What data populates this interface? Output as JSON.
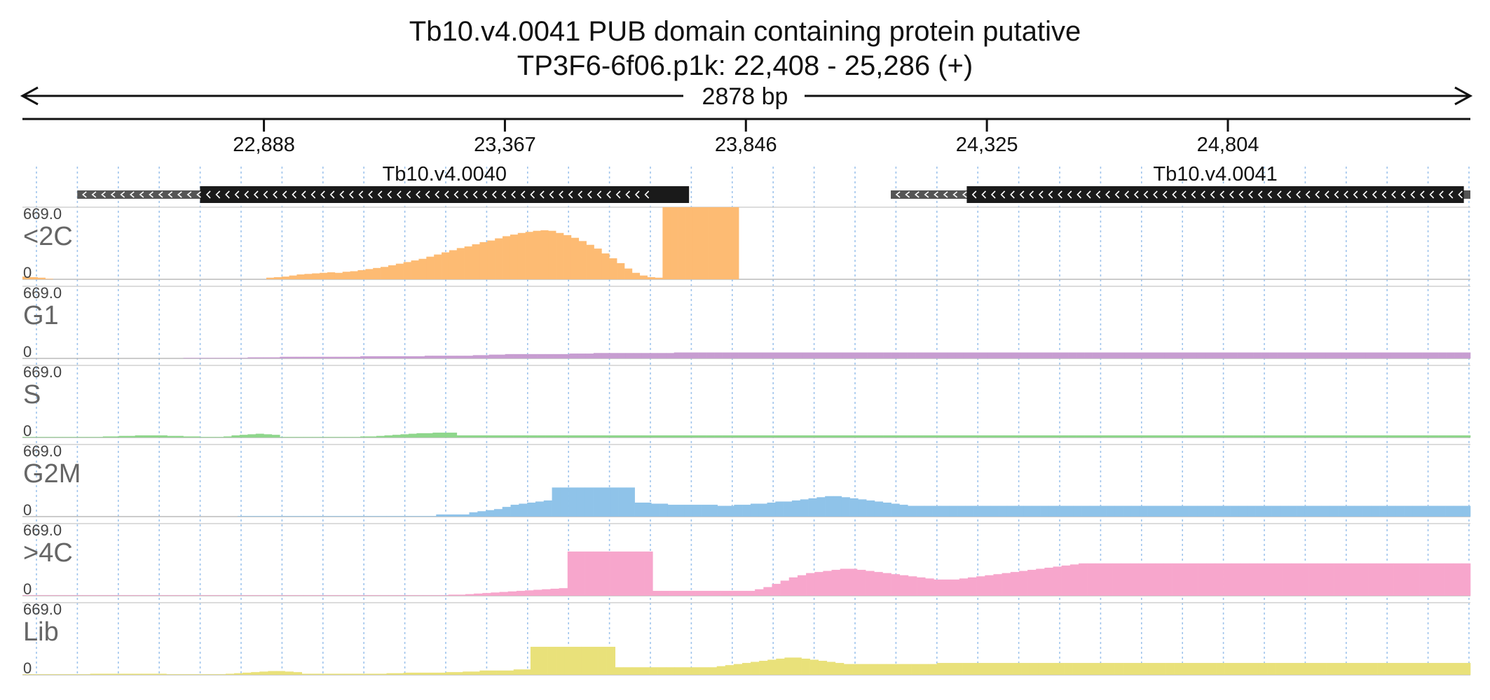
{
  "title": {
    "line1": "Tb10.v4.0041  PUB domain containing protein  putative",
    "line2": "TP3F6-6f06.p1k: 22,408 - 25,286 (+)"
  },
  "ruler": {
    "span_label": "2878 bp",
    "range": [
      22408,
      25286
    ],
    "ticks": [
      {
        "pos": 22888,
        "label": "22,888"
      },
      {
        "pos": 23367,
        "label": "23,367"
      },
      {
        "pos": 23846,
        "label": "23,846"
      },
      {
        "pos": 24325,
        "label": "24,325"
      },
      {
        "pos": 24804,
        "label": "24,804"
      }
    ]
  },
  "genes": [
    {
      "name": "Tb10.v4.0040",
      "utr": [
        22517,
        23672
      ],
      "cds": [
        22761,
        23733
      ],
      "strand": "-"
    },
    {
      "name": "Tb10.v4.0041",
      "utr": [
        24134,
        25286
      ],
      "cds": [
        24285,
        25273
      ],
      "strand": "-"
    }
  ],
  "colors": {
    "<2C": "#fdbb73",
    "G1": "#c79dd1",
    "S": "#8fd68c",
    "G2M": "#8fc3e9",
    ">4C": "#f7a6cc",
    "Lib": "#e9e17a",
    "gene_cds": "#1a1a1a",
    "gene_utr": "#555555",
    "grid": "#9fc4ec"
  },
  "chart_data": {
    "type": "area",
    "x_range": [
      22408,
      25286
    ],
    "bin_bp": 16.83,
    "y_range": [
      0,
      669.0
    ],
    "ymax_label": "669.0",
    "ymin_label": "0",
    "tracks": [
      {
        "name": "<2C",
        "values": [
          25,
          20,
          15,
          5,
          0,
          0,
          0,
          0,
          0,
          0,
          0,
          0,
          0,
          0,
          0,
          0,
          0,
          0,
          0,
          0,
          0,
          0,
          0,
          0,
          0,
          0,
          0,
          0,
          0,
          0,
          0,
          0,
          15,
          20,
          25,
          35,
          45,
          50,
          55,
          60,
          65,
          60,
          70,
          75,
          85,
          95,
          105,
          115,
          130,
          145,
          160,
          175,
          190,
          210,
          230,
          250,
          270,
          290,
          305,
          325,
          345,
          360,
          380,
          400,
          415,
          430,
          440,
          450,
          455,
          450,
          430,
          410,
          385,
          355,
          320,
          285,
          240,
          195,
          150,
          100,
          60,
          35,
          20,
          15,
          669,
          669,
          669,
          669,
          669,
          669,
          669,
          669,
          669,
          669,
          0,
          0,
          0,
          0,
          0,
          0,
          0,
          0,
          0,
          0,
          0,
          0,
          0,
          0,
          0,
          0,
          0,
          0,
          0,
          0,
          0,
          0,
          0,
          0,
          0,
          0,
          0,
          0,
          0,
          0,
          0,
          0,
          0,
          0,
          0,
          0,
          0,
          0,
          0,
          0,
          0,
          0,
          0,
          0,
          0,
          0,
          0,
          0,
          0,
          0,
          0,
          0,
          0,
          0,
          0,
          0,
          0,
          0,
          0,
          0,
          0,
          0,
          0,
          0,
          0,
          0,
          0,
          0,
          0,
          0,
          0,
          0,
          0,
          0,
          0,
          0,
          0,
          0,
          0,
          0,
          0,
          0,
          0,
          0,
          0,
          0,
          0,
          0,
          0,
          0,
          0,
          0,
          0,
          0,
          0,
          0
        ]
      },
      {
        "name": "G1",
        "values": [
          0,
          0,
          0,
          0,
          0,
          0,
          0,
          0,
          0,
          0,
          0,
          0,
          0,
          0,
          0,
          0,
          0,
          0,
          0,
          0,
          5,
          5,
          5,
          5,
          5,
          5,
          5,
          5,
          10,
          10,
          10,
          10,
          15,
          15,
          15,
          15,
          15,
          15,
          15,
          15,
          15,
          15,
          20,
          20,
          20,
          20,
          20,
          20,
          20,
          20,
          25,
          25,
          25,
          25,
          25,
          25,
          30,
          30,
          35,
          35,
          40,
          40,
          40,
          40,
          40,
          40,
          40,
          40,
          45,
          45,
          45,
          50,
          50,
          50,
          50,
          50,
          50,
          50,
          50,
          50,
          50,
          55,
          55,
          55,
          55,
          55,
          55,
          55,
          55,
          55,
          55,
          55,
          55,
          55,
          55,
          55,
          55,
          55,
          55,
          55,
          55,
          55,
          55,
          55,
          55,
          55,
          55,
          55,
          55,
          55,
          55,
          55,
          55,
          55,
          55,
          55,
          55,
          55,
          55,
          55,
          55,
          55,
          55,
          55,
          55,
          55,
          55,
          55,
          55,
          55,
          55,
          55,
          55,
          55,
          55,
          55,
          55,
          55,
          55,
          55,
          55,
          55,
          55,
          55,
          55,
          55,
          55,
          55,
          55,
          55,
          55,
          55,
          55,
          55,
          55,
          55,
          55,
          55,
          55,
          55,
          55,
          55,
          55,
          55,
          55,
          55,
          55,
          55,
          55,
          55,
          55,
          55,
          55,
          55,
          55,
          55,
          55,
          55,
          55,
          55
        ]
      },
      {
        "name": "S",
        "values": [
          5,
          5,
          5,
          5,
          5,
          5,
          5,
          5,
          5,
          5,
          10,
          10,
          15,
          15,
          20,
          20,
          20,
          20,
          15,
          15,
          10,
          10,
          5,
          5,
          5,
          10,
          20,
          25,
          30,
          35,
          30,
          25,
          5,
          5,
          5,
          5,
          5,
          5,
          5,
          5,
          5,
          5,
          10,
          10,
          15,
          20,
          25,
          30,
          35,
          40,
          40,
          45,
          45,
          45,
          20,
          20,
          20,
          20,
          20,
          20,
          20,
          20,
          20,
          20,
          20,
          20,
          20,
          20,
          20,
          20,
          20,
          20,
          20,
          20,
          20,
          20,
          20,
          20,
          20,
          20,
          20,
          20,
          20,
          20,
          20,
          20,
          20,
          20,
          20,
          20,
          20,
          20,
          20,
          20,
          20,
          20,
          20,
          20,
          20,
          20,
          20,
          20,
          20,
          20,
          20,
          20,
          20,
          20,
          20,
          20,
          20,
          20,
          20,
          20,
          20,
          20,
          20,
          20,
          20,
          20,
          20,
          20,
          20,
          20,
          20,
          20,
          20,
          20,
          20,
          20,
          20,
          20,
          20,
          20,
          20,
          20,
          20,
          20,
          20,
          20,
          20,
          20,
          20,
          20,
          20,
          20,
          20,
          20,
          20,
          20,
          20,
          20,
          20,
          20,
          20,
          20,
          20,
          20,
          20,
          20,
          20,
          20,
          20,
          20,
          20,
          20,
          20,
          20,
          20,
          20,
          20,
          20,
          20,
          20,
          20,
          20,
          20,
          20,
          20,
          20
        ]
      },
      {
        "name": "G2M",
        "values": [
          0,
          0,
          0,
          0,
          0,
          0,
          0,
          0,
          0,
          0,
          0,
          0,
          0,
          0,
          0,
          0,
          0,
          0,
          0,
          0,
          0,
          0,
          0,
          0,
          0,
          0,
          5,
          5,
          5,
          5,
          5,
          5,
          5,
          5,
          5,
          5,
          5,
          5,
          5,
          5,
          5,
          5,
          5,
          5,
          5,
          5,
          5,
          5,
          5,
          5,
          20,
          20,
          20,
          20,
          40,
          50,
          60,
          70,
          90,
          110,
          120,
          130,
          140,
          150,
          270,
          270,
          270,
          270,
          270,
          270,
          270,
          270,
          270,
          270,
          130,
          130,
          120,
          120,
          110,
          110,
          110,
          110,
          110,
          110,
          100,
          100,
          110,
          110,
          120,
          120,
          130,
          140,
          140,
          150,
          160,
          170,
          180,
          190,
          190,
          180,
          170,
          160,
          150,
          140,
          130,
          120,
          110,
          100,
          100,
          100,
          100,
          100,
          100,
          100,
          100,
          100,
          100,
          100,
          100,
          100,
          100,
          100,
          100,
          100,
          100,
          100,
          100,
          100,
          100,
          100,
          100,
          100,
          100,
          100,
          100,
          100,
          100,
          100,
          100,
          100,
          100,
          100,
          100,
          100,
          100,
          100,
          100,
          100,
          100,
          100,
          100,
          100,
          100,
          100,
          100,
          100,
          100,
          100,
          100,
          100,
          100,
          100,
          100,
          100,
          100,
          100,
          100,
          100,
          100,
          100,
          100,
          100,
          100,
          100,
          100
        ]
      },
      {
        "name": ">4C",
        "values": [
          5,
          5,
          5,
          5,
          5,
          5,
          5,
          5,
          5,
          5,
          5,
          5,
          5,
          5,
          5,
          5,
          5,
          5,
          5,
          5,
          5,
          5,
          5,
          5,
          5,
          5,
          5,
          5,
          5,
          5,
          5,
          5,
          5,
          5,
          5,
          5,
          5,
          5,
          5,
          5,
          5,
          5,
          5,
          5,
          5,
          5,
          5,
          5,
          5,
          5,
          10,
          10,
          15,
          20,
          25,
          30,
          35,
          40,
          45,
          50,
          55,
          60,
          65,
          70,
          410,
          410,
          410,
          410,
          410,
          410,
          410,
          410,
          410,
          410,
          45,
          45,
          45,
          45,
          45,
          45,
          45,
          45,
          45,
          45,
          45,
          45,
          60,
          80,
          110,
          140,
          170,
          190,
          210,
          220,
          230,
          240,
          250,
          250,
          240,
          230,
          220,
          210,
          200,
          190,
          180,
          170,
          160,
          150,
          150,
          150,
          160,
          170,
          180,
          190,
          200,
          210,
          220,
          230,
          240,
          250,
          260,
          270,
          280,
          290,
          300,
          300,
          300,
          300,
          300,
          300,
          300,
          300,
          300,
          300,
          300,
          300,
          300,
          300,
          300,
          300,
          300,
          300,
          300,
          300,
          300,
          300,
          300,
          300,
          300,
          300,
          300,
          300,
          300,
          300,
          300,
          300,
          300,
          300,
          300,
          300,
          300,
          300,
          300,
          300,
          300,
          300,
          300,
          300,
          300,
          300
        ]
      },
      {
        "name": "Lib",
        "values": [
          5,
          5,
          5,
          5,
          5,
          5,
          5,
          5,
          10,
          10,
          10,
          10,
          10,
          10,
          10,
          10,
          10,
          5,
          5,
          5,
          5,
          5,
          5,
          5,
          10,
          15,
          20,
          25,
          30,
          35,
          35,
          30,
          25,
          10,
          10,
          10,
          10,
          10,
          10,
          10,
          10,
          10,
          10,
          15,
          15,
          20,
          20,
          20,
          20,
          20,
          25,
          25,
          30,
          30,
          40,
          40,
          40,
          40,
          50,
          50,
          260,
          260,
          260,
          260,
          260,
          260,
          260,
          260,
          260,
          260,
          70,
          70,
          70,
          70,
          70,
          70,
          70,
          70,
          70,
          70,
          70,
          70,
          80,
          90,
          100,
          110,
          120,
          130,
          140,
          150,
          160,
          160,
          150,
          140,
          130,
          120,
          110,
          100,
          100,
          100,
          100,
          100,
          100,
          100,
          100,
          100,
          100,
          100,
          110,
          110,
          110,
          110,
          110,
          110,
          110,
          110,
          110,
          110,
          110,
          110,
          110,
          110,
          110,
          110,
          110,
          110,
          110,
          110,
          110,
          110,
          110,
          110,
          110,
          110,
          110,
          110,
          110,
          110,
          110,
          110,
          110,
          110,
          110,
          110,
          110,
          110,
          110,
          110,
          110,
          110,
          110,
          110,
          110,
          110,
          110,
          110,
          110,
          110,
          110,
          110,
          110,
          110,
          110,
          110,
          110,
          110,
          110,
          110,
          110,
          110,
          110
        ]
      }
    ]
  }
}
